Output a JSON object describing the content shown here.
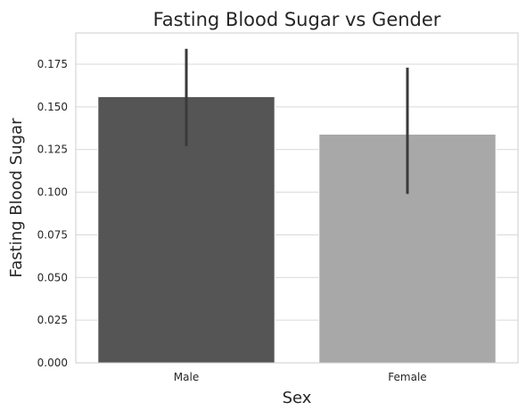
{
  "chart_data": {
    "type": "bar",
    "title": "Fasting Blood Sugar vs Gender",
    "xlabel": "Sex",
    "ylabel": "Fasting Blood Sugar",
    "categories": [
      "Male",
      "Female"
    ],
    "values": [
      0.156,
      0.134
    ],
    "error_bars": [
      {
        "low": 0.127,
        "high": 0.184
      },
      {
        "low": 0.099,
        "high": 0.173
      }
    ],
    "bar_colors": [
      "#555555",
      "#a8a8a8"
    ],
    "error_bar_color": "#3a3a3a",
    "ylim": [
      0,
      0.1933
    ],
    "yticks": [
      0.0,
      0.025,
      0.05,
      0.075,
      0.1,
      0.125,
      0.15,
      0.175
    ],
    "ytick_labels": [
      "0.000",
      "0.025",
      "0.050",
      "0.075",
      "0.100",
      "0.125",
      "0.150",
      "0.175"
    ],
    "grid": true,
    "grid_axis": "y",
    "grid_color": "#d9d9d9",
    "axes_edge_color": "#cccccc",
    "text_color": "#262626"
  }
}
